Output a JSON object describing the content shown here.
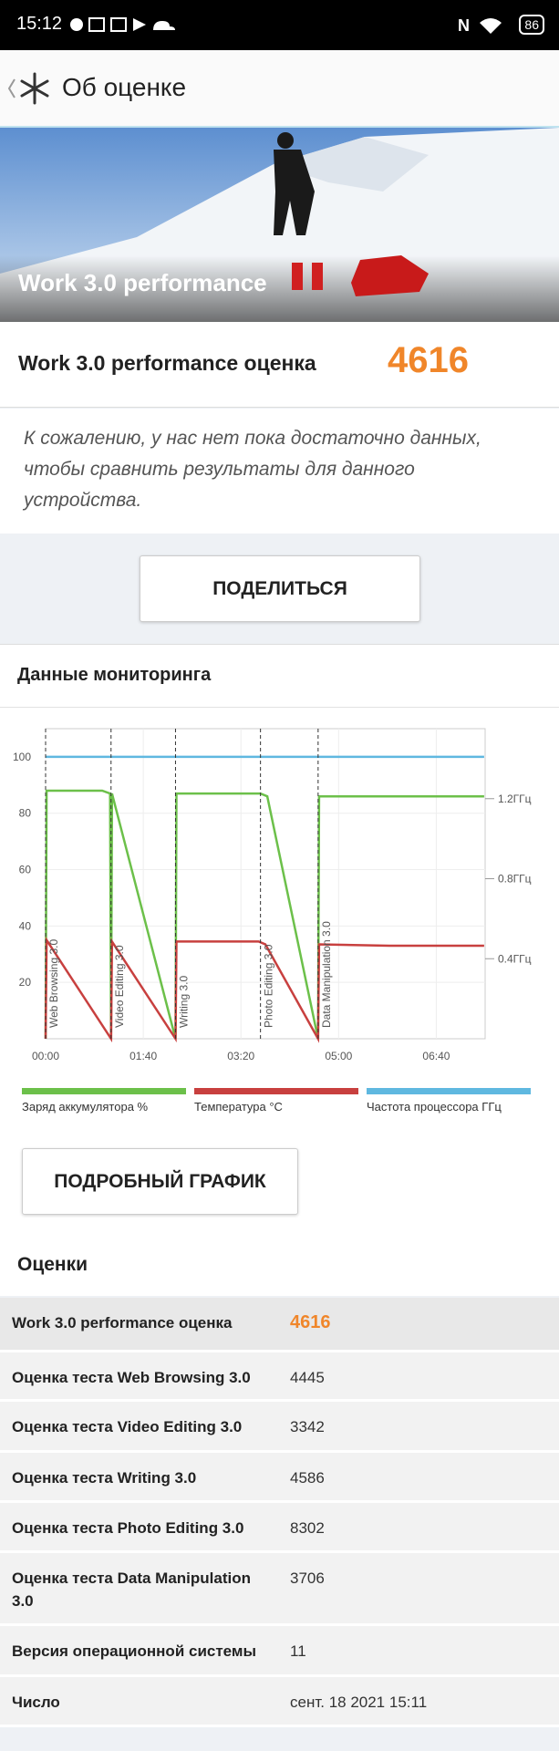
{
  "status_bar": {
    "time": "15:12",
    "battery": "86"
  },
  "header": {
    "title": "Об оценке"
  },
  "hero": {
    "caption": "Work 3.0 performance"
  },
  "score": {
    "label": "Work 3.0 performance оценка",
    "value": "4616"
  },
  "message": "К сожалению, у нас нет пока достаточно данных, чтобы сравнить результаты для данного устройства.",
  "share_button": "ПОДЕЛИТЬСЯ",
  "monitoring": {
    "title": "Данные мониторинга",
    "detail_button": "ПОДРОБНЫЙ ГРАФИК"
  },
  "chart_data": {
    "type": "line",
    "xlim": [
      0,
      450
    ],
    "xticks": [
      {
        "value": 0,
        "label": "00:00"
      },
      {
        "value": 100,
        "label": "01:40"
      },
      {
        "value": 200,
        "label": "03:20"
      },
      {
        "value": 300,
        "label": "05:00"
      },
      {
        "value": 400,
        "label": "06:40"
      }
    ],
    "ylim": [
      0,
      110
    ],
    "yticks": [
      20,
      40,
      60,
      80,
      100
    ],
    "y2lim": [
      0,
      1.55
    ],
    "y2ticks": [
      {
        "value": 0.4,
        "label": "0.4ГГц"
      },
      {
        "value": 0.8,
        "label": "0.8ГГц"
      },
      {
        "value": 1.2,
        "label": "1.2ГГц"
      }
    ],
    "grid": true,
    "series": [
      {
        "name": "Заряд аккумулятора %",
        "color": "#6cc04a",
        "x": [
          0,
          1,
          58,
          66,
          67,
          68,
          133,
          134,
          220,
          227,
          279,
          280,
          449
        ],
        "values": [
          0,
          88,
          88,
          87,
          0,
          87,
          0,
          87,
          87,
          86,
          0,
          86,
          86
        ]
      },
      {
        "name": "Температура °C",
        "color": "#c8403f",
        "x": [
          0,
          1,
          67,
          68,
          133,
          134,
          218,
          225,
          279,
          280,
          352,
          449
        ],
        "values": [
          0,
          35,
          0,
          34.5,
          0,
          34.5,
          34.5,
          33.5,
          0,
          33.5,
          33,
          33
        ]
      },
      {
        "name": "Частота процессора ГГц",
        "color": "#5fb8e0",
        "x": [
          0,
          449
        ],
        "values": [
          100,
          100
        ]
      }
    ],
    "markers": [
      {
        "x": 0,
        "label": "Web Browsing 3.0"
      },
      {
        "x": 67,
        "label": "Video Editing 3.0"
      },
      {
        "x": 133,
        "label": "Writing 3.0"
      },
      {
        "x": 220,
        "label": "Photo Editing 3.0"
      },
      {
        "x": 279,
        "label": "Data Manipulation 3.0"
      }
    ]
  },
  "scores": {
    "title": "Оценки",
    "rows": [
      [
        "Work 3.0 performance оценка",
        "4616"
      ],
      [
        "Оценка теста Web Browsing 3.0",
        "4445"
      ],
      [
        "Оценка теста Video Editing 3.0",
        "3342"
      ],
      [
        "Оценка теста Writing 3.0",
        "4586"
      ],
      [
        "Оценка теста Photo Editing 3.0",
        "8302"
      ],
      [
        "Оценка теста Data Manipulation 3.0",
        "3706"
      ],
      [
        "Версия операционной системы",
        "11"
      ],
      [
        "Число",
        "сент. 18 2021 15:11"
      ]
    ]
  }
}
